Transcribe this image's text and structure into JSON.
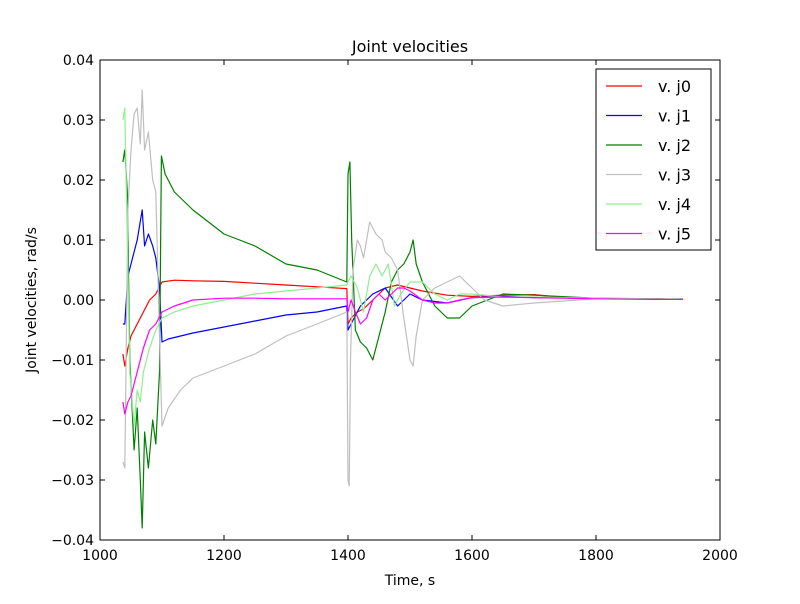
{
  "chart_data": {
    "type": "line",
    "title": "Joint velocities",
    "xlabel": "Time, s",
    "ylabel": "Joint velocities, rad/s",
    "xlim": [
      1000,
      2000
    ],
    "ylim": [
      -0.04,
      0.04
    ],
    "x_ticks": [
      "1000",
      "1200",
      "1400",
      "1600",
      "1800",
      "2000"
    ],
    "y_ticks": [
      "−0.04",
      "−0.03",
      "−0.02",
      "−0.01",
      "0.00",
      "0.01",
      "0.02",
      "0.03",
      "0.04"
    ],
    "grid": false,
    "legend_position": "top-right",
    "series": [
      {
        "name": "v. j0",
        "color": "#ff0000",
        "points": [
          [
            1037,
            -0.009
          ],
          [
            1040,
            -0.011
          ],
          [
            1045,
            -0.008
          ],
          [
            1050,
            -0.006
          ],
          [
            1060,
            -0.004
          ],
          [
            1070,
            -0.002
          ],
          [
            1080,
            0.0
          ],
          [
            1090,
            0.001
          ],
          [
            1095,
            0.002
          ],
          [
            1100,
            0.003
          ],
          [
            1120,
            0.0033
          ],
          [
            1150,
            0.0032
          ],
          [
            1200,
            0.0031
          ],
          [
            1250,
            0.0028
          ],
          [
            1300,
            0.0025
          ],
          [
            1350,
            0.0022
          ],
          [
            1398,
            0.0019
          ],
          [
            1400,
            -0.004
          ],
          [
            1405,
            -0.003
          ],
          [
            1415,
            -0.002
          ],
          [
            1425,
            -0.0015
          ],
          [
            1440,
            0.0
          ],
          [
            1460,
            0.002
          ],
          [
            1480,
            0.0025
          ],
          [
            1500,
            0.002
          ],
          [
            1520,
            0.0015
          ],
          [
            1560,
            0.0008
          ],
          [
            1600,
            0.0006
          ],
          [
            1650,
            0.0008
          ],
          [
            1700,
            0.0009
          ],
          [
            1750,
            0.0004
          ],
          [
            1800,
            0.0002
          ],
          [
            1900,
            0.0002
          ],
          [
            1940,
            0.0001
          ]
        ]
      },
      {
        "name": "v. j1",
        "color": "#0000ff",
        "points": [
          [
            1037,
            -0.004
          ],
          [
            1040,
            -0.004
          ],
          [
            1045,
            0.004
          ],
          [
            1050,
            0.006
          ],
          [
            1060,
            0.01
          ],
          [
            1068,
            0.015
          ],
          [
            1072,
            0.009
          ],
          [
            1078,
            0.011
          ],
          [
            1085,
            0.009
          ],
          [
            1090,
            0.007
          ],
          [
            1096,
            0.002
          ],
          [
            1100,
            -0.007
          ],
          [
            1110,
            -0.0065
          ],
          [
            1150,
            -0.0055
          ],
          [
            1200,
            -0.0045
          ],
          [
            1250,
            -0.0035
          ],
          [
            1300,
            -0.0025
          ],
          [
            1350,
            -0.002
          ],
          [
            1398,
            -0.001
          ],
          [
            1400,
            -0.005
          ],
          [
            1405,
            -0.004
          ],
          [
            1420,
            -0.001
          ],
          [
            1440,
            0.001
          ],
          [
            1460,
            0.002
          ],
          [
            1480,
            -0.001
          ],
          [
            1500,
            0.001
          ],
          [
            1520,
            0.0
          ],
          [
            1560,
            -0.0005
          ],
          [
            1600,
            0.0004
          ],
          [
            1650,
            0.0006
          ],
          [
            1700,
            0.0004
          ],
          [
            1800,
            0.0003
          ],
          [
            1900,
            0.0001
          ],
          [
            1940,
            0.0002
          ]
        ]
      },
      {
        "name": "v. j2",
        "color": "#008000",
        "points": [
          [
            1037,
            0.023
          ],
          [
            1040,
            0.025
          ],
          [
            1044,
            0.018
          ],
          [
            1048,
            -0.01
          ],
          [
            1055,
            -0.025
          ],
          [
            1060,
            -0.018
          ],
          [
            1065,
            -0.03
          ],
          [
            1068,
            -0.038
          ],
          [
            1072,
            -0.022
          ],
          [
            1078,
            -0.028
          ],
          [
            1085,
            -0.02
          ],
          [
            1090,
            -0.024
          ],
          [
            1096,
            -0.012
          ],
          [
            1099,
            0.024
          ],
          [
            1105,
            0.021
          ],
          [
            1120,
            0.018
          ],
          [
            1150,
            0.015
          ],
          [
            1200,
            0.011
          ],
          [
            1250,
            0.009
          ],
          [
            1300,
            0.006
          ],
          [
            1350,
            0.005
          ],
          [
            1398,
            0.003
          ],
          [
            1400,
            0.021
          ],
          [
            1403,
            0.023
          ],
          [
            1406,
            0.01
          ],
          [
            1412,
            -0.005
          ],
          [
            1420,
            -0.007
          ],
          [
            1430,
            -0.008
          ],
          [
            1440,
            -0.01
          ],
          [
            1450,
            -0.006
          ],
          [
            1460,
            -0.002
          ],
          [
            1470,
            0.003
          ],
          [
            1480,
            0.005
          ],
          [
            1490,
            0.006
          ],
          [
            1500,
            0.008
          ],
          [
            1505,
            0.01
          ],
          [
            1510,
            0.006
          ],
          [
            1520,
            0.003
          ],
          [
            1540,
            -0.001
          ],
          [
            1560,
            -0.003
          ],
          [
            1580,
            -0.003
          ],
          [
            1600,
            -0.001
          ],
          [
            1650,
            0.001
          ],
          [
            1700,
            0.0008
          ],
          [
            1800,
            0.0003
          ],
          [
            1900,
            0.0002
          ],
          [
            1940,
            0.0001
          ]
        ]
      },
      {
        "name": "v. j3",
        "color": "#bfbfbf",
        "points": [
          [
            1037,
            -0.027
          ],
          [
            1040,
            -0.028
          ],
          [
            1045,
            0.015
          ],
          [
            1050,
            0.025
          ],
          [
            1055,
            0.031
          ],
          [
            1060,
            0.032
          ],
          [
            1065,
            0.026
          ],
          [
            1068,
            0.035
          ],
          [
            1072,
            0.025
          ],
          [
            1078,
            0.028
          ],
          [
            1085,
            0.02
          ],
          [
            1090,
            0.018
          ],
          [
            1096,
            -0.006
          ],
          [
            1100,
            -0.021
          ],
          [
            1110,
            -0.018
          ],
          [
            1130,
            -0.015
          ],
          [
            1150,
            -0.013
          ],
          [
            1200,
            -0.011
          ],
          [
            1250,
            -0.009
          ],
          [
            1300,
            -0.006
          ],
          [
            1350,
            -0.004
          ],
          [
            1398,
            -0.002
          ],
          [
            1400,
            -0.03
          ],
          [
            1402,
            -0.031
          ],
          [
            1404,
            -0.01
          ],
          [
            1408,
            0.005
          ],
          [
            1415,
            0.01
          ],
          [
            1420,
            0.009
          ],
          [
            1425,
            0.007
          ],
          [
            1435,
            0.013
          ],
          [
            1445,
            0.011
          ],
          [
            1455,
            0.01
          ],
          [
            1460,
            0.008
          ],
          [
            1470,
            0.007
          ],
          [
            1480,
            0.005
          ],
          [
            1490,
            -0.003
          ],
          [
            1500,
            -0.01
          ],
          [
            1505,
            -0.011
          ],
          [
            1510,
            -0.006
          ],
          [
            1520,
            0.0
          ],
          [
            1540,
            0.002
          ],
          [
            1560,
            0.003
          ],
          [
            1580,
            0.004
          ],
          [
            1600,
            0.002
          ],
          [
            1620,
            0.0
          ],
          [
            1650,
            -0.001
          ],
          [
            1700,
            -0.0005
          ],
          [
            1800,
            0.0002
          ],
          [
            1900,
            0.0001
          ],
          [
            1940,
            0.0001
          ]
        ]
      },
      {
        "name": "v. j4",
        "color": "#90ee90",
        "points": [
          [
            1037,
            0.03
          ],
          [
            1040,
            0.032
          ],
          [
            1044,
            0.01
          ],
          [
            1048,
            -0.012
          ],
          [
            1055,
            -0.021
          ],
          [
            1060,
            -0.015
          ],
          [
            1065,
            -0.017
          ],
          [
            1070,
            -0.012
          ],
          [
            1080,
            -0.008
          ],
          [
            1090,
            -0.005
          ],
          [
            1100,
            -0.003
          ],
          [
            1120,
            -0.002
          ],
          [
            1150,
            -0.001
          ],
          [
            1200,
            0.0
          ],
          [
            1250,
            0.001
          ],
          [
            1300,
            0.0015
          ],
          [
            1350,
            0.002
          ],
          [
            1398,
            0.0025
          ],
          [
            1400,
            0.003
          ],
          [
            1405,
            0.004
          ],
          [
            1415,
            0.002
          ],
          [
            1425,
            -0.002
          ],
          [
            1435,
            0.004
          ],
          [
            1445,
            0.006
          ],
          [
            1455,
            0.004
          ],
          [
            1465,
            0.006
          ],
          [
            1475,
            -0.001
          ],
          [
            1485,
            0.001
          ],
          [
            1500,
            0.003
          ],
          [
            1520,
            0.003
          ],
          [
            1540,
            0.001
          ],
          [
            1560,
            0.0
          ],
          [
            1580,
            0.001
          ],
          [
            1600,
            0.001
          ],
          [
            1650,
            0.0005
          ],
          [
            1700,
            0.0005
          ],
          [
            1800,
            0.0003
          ],
          [
            1900,
            0.0002
          ],
          [
            1940,
            0.0002
          ]
        ]
      },
      {
        "name": "v. j5",
        "color": "#ff00ff",
        "points": [
          [
            1037,
            -0.017
          ],
          [
            1040,
            -0.019
          ],
          [
            1045,
            -0.017
          ],
          [
            1050,
            -0.016
          ],
          [
            1060,
            -0.012
          ],
          [
            1070,
            -0.008
          ],
          [
            1080,
            -0.005
          ],
          [
            1090,
            -0.004
          ],
          [
            1100,
            -0.002
          ],
          [
            1120,
            -0.001
          ],
          [
            1150,
            0.0
          ],
          [
            1200,
            0.0003
          ],
          [
            1250,
            0.0003
          ],
          [
            1300,
            0.0002
          ],
          [
            1350,
            0.0002
          ],
          [
            1398,
            0.0002
          ],
          [
            1400,
            -0.002
          ],
          [
            1405,
            0.0
          ],
          [
            1412,
            -0.002
          ],
          [
            1420,
            -0.004
          ],
          [
            1430,
            -0.003
          ],
          [
            1440,
            0.0
          ],
          [
            1450,
            0.001
          ],
          [
            1460,
            0.0
          ],
          [
            1470,
            0.001
          ],
          [
            1480,
            0.002
          ],
          [
            1490,
            0.002
          ],
          [
            1500,
            0.0015
          ],
          [
            1520,
            0.0
          ],
          [
            1540,
            -0.0005
          ],
          [
            1560,
            -0.0005
          ],
          [
            1580,
            0.0
          ],
          [
            1600,
            0.0004
          ],
          [
            1650,
            0.0005
          ],
          [
            1700,
            0.0004
          ],
          [
            1800,
            0.0002
          ],
          [
            1900,
            0.0001
          ],
          [
            1940,
            0.0001
          ]
        ]
      }
    ]
  }
}
